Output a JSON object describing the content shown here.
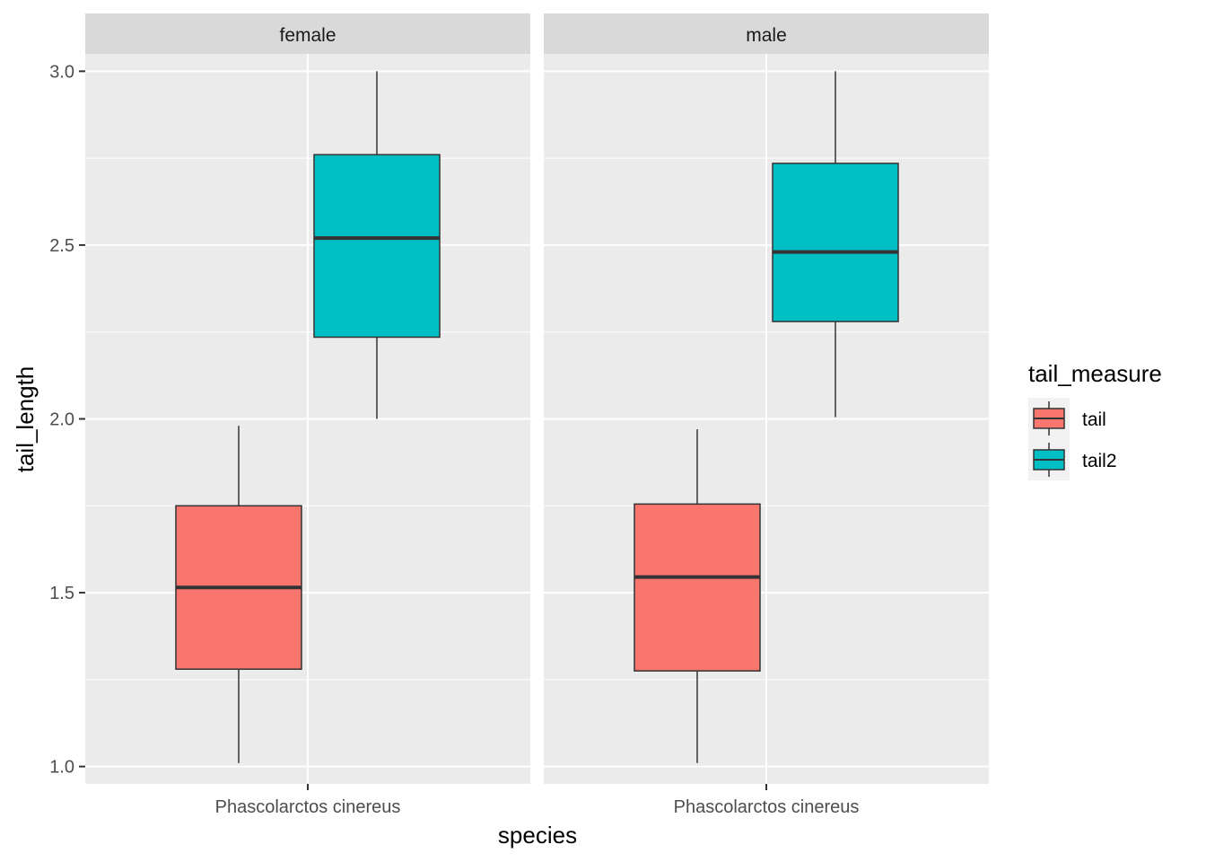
{
  "chart_data": {
    "type": "boxplot",
    "xlabel": "species",
    "ylabel": "tail_length",
    "ylim": [
      0.95,
      3.05
    ],
    "yticks": [
      "1.0",
      "1.5",
      "2.0",
      "2.5",
      "3.0"
    ],
    "category": "Phascolarctos cinereus",
    "facets": [
      {
        "label": "female",
        "boxes": [
          {
            "group": "tail",
            "min": 1.01,
            "q1": 1.28,
            "median": 1.515,
            "q3": 1.75,
            "max": 1.98
          },
          {
            "group": "tail2",
            "min": 2.0,
            "q1": 2.235,
            "median": 2.52,
            "q3": 2.76,
            "max": 3.0
          }
        ]
      },
      {
        "label": "male",
        "boxes": [
          {
            "group": "tail",
            "min": 1.01,
            "q1": 1.275,
            "median": 1.545,
            "q3": 1.755,
            "max": 1.97
          },
          {
            "group": "tail2",
            "min": 2.005,
            "q1": 2.28,
            "median": 2.48,
            "q3": 2.735,
            "max": 3.0
          }
        ]
      }
    ],
    "legend": {
      "title": "tail_measure",
      "position": "right",
      "items": [
        {
          "label": "tail",
          "color": "#F8766D"
        },
        {
          "label": "tail2",
          "color": "#00BFC4"
        }
      ]
    },
    "grid": true,
    "colors": {
      "panel": "#EBEBEB",
      "strip": "#D9D9D9",
      "grid": "#FFFFFF",
      "outline": "#333333"
    }
  }
}
